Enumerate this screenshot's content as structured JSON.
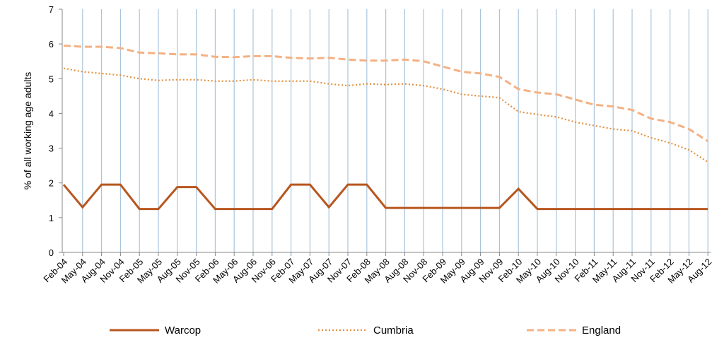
{
  "chart_data": {
    "type": "line",
    "y_label": "% of all working age adults",
    "categories": [
      "Feb-04",
      "May-04",
      "Aug-04",
      "Nov-04",
      "Feb-05",
      "May-05",
      "Aug-05",
      "Nov-05",
      "Feb-06",
      "May-06",
      "Aug-06",
      "Nov-06",
      "Feb-07",
      "May-07",
      "Aug-07",
      "Nov-07",
      "Feb-08",
      "May-08",
      "Aug-08",
      "Nov-08",
      "Feb-09",
      "May-09",
      "Aug-09",
      "Nov-09",
      "Feb-10",
      "May-10",
      "Aug-10",
      "Nov-10",
      "Feb-11",
      "May-11",
      "Aug-11",
      "Nov-11",
      "Feb-12",
      "May-12",
      "Aug-12"
    ],
    "series": [
      {
        "name": "Warcop",
        "color": "#b8561f",
        "style": "solid",
        "values": [
          1.95,
          1.3,
          1.95,
          1.95,
          1.25,
          1.25,
          1.88,
          1.88,
          1.25,
          1.25,
          1.25,
          1.25,
          1.95,
          1.95,
          1.3,
          1.95,
          1.95,
          1.28,
          1.28,
          1.28,
          1.28,
          1.28,
          1.28,
          1.28,
          1.83,
          1.25,
          1.25,
          1.25,
          1.25,
          1.25,
          1.25,
          1.25,
          1.25,
          1.25,
          1.25
        ]
      },
      {
        "name": "Cumbria",
        "color": "#e2913f",
        "style": "dotted",
        "values": [
          5.3,
          5.2,
          5.15,
          5.1,
          5.0,
          4.95,
          4.97,
          4.97,
          4.93,
          4.93,
          4.97,
          4.93,
          4.93,
          4.93,
          4.85,
          4.8,
          4.85,
          4.83,
          4.85,
          4.8,
          4.7,
          4.55,
          4.5,
          4.45,
          4.05,
          3.97,
          3.9,
          3.75,
          3.65,
          3.55,
          3.5,
          3.3,
          3.15,
          2.95,
          2.6
        ]
      },
      {
        "name": "England",
        "color": "#f4b183",
        "style": "dashed",
        "values": [
          5.95,
          5.92,
          5.92,
          5.88,
          5.75,
          5.73,
          5.7,
          5.7,
          5.63,
          5.62,
          5.65,
          5.65,
          5.6,
          5.58,
          5.6,
          5.55,
          5.52,
          5.52,
          5.55,
          5.5,
          5.35,
          5.2,
          5.15,
          5.05,
          4.7,
          4.6,
          4.55,
          4.4,
          4.25,
          4.2,
          4.1,
          3.85,
          3.75,
          3.55,
          3.2
        ]
      }
    ],
    "ylim": [
      0,
      7
    ],
    "yticks": [
      0,
      1,
      2,
      3,
      4,
      5,
      6,
      7
    ],
    "grid": true,
    "legend": "bottom"
  }
}
